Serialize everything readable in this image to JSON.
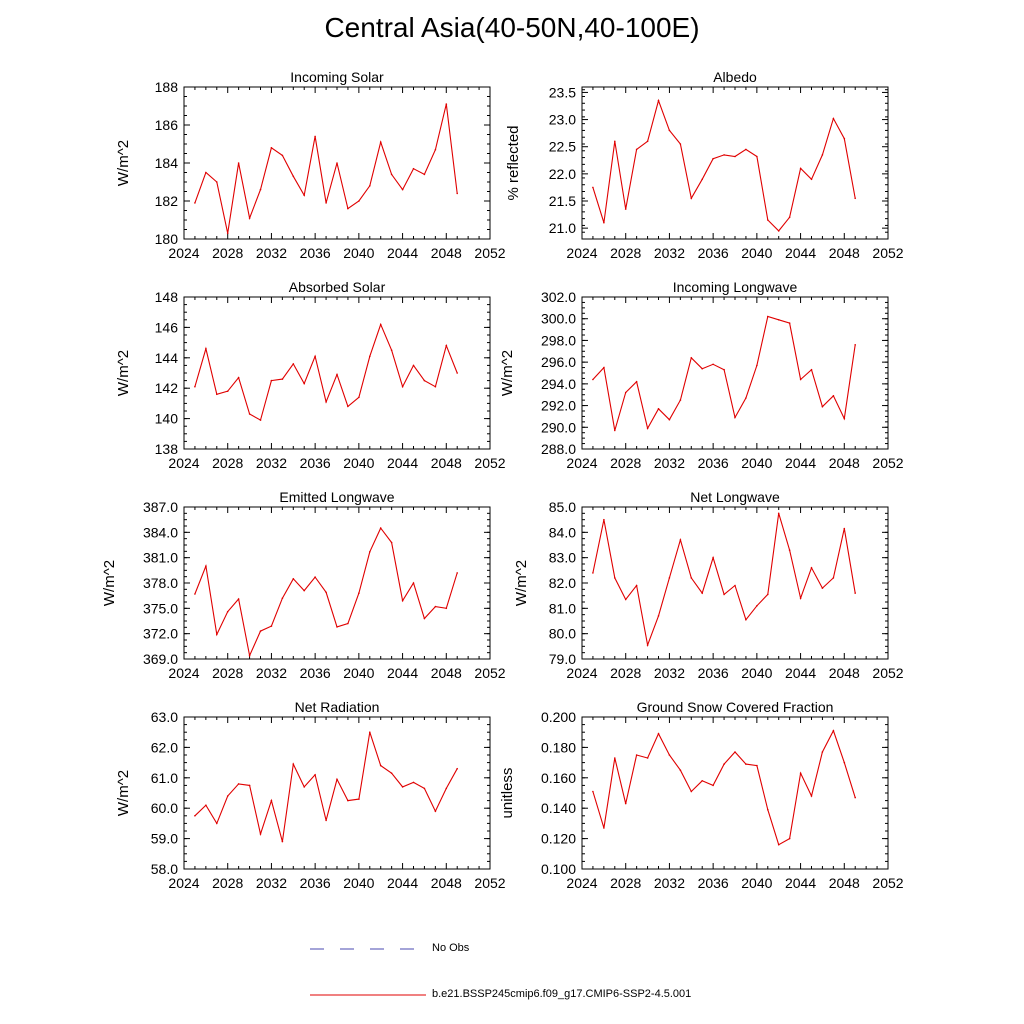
{
  "title": "Central Asia(40-50N,40-100E)",
  "legend": {
    "obs_label": "No Obs",
    "obs_color": "#4a4ab0",
    "model_label": "b.e21.BSSP245cmip6.f09_g17.CMIP6-SSP2-4.5.001",
    "model_color": "#e00000"
  },
  "chart_data": [
    {
      "type": "line",
      "title": "Incoming Solar",
      "ylabel": "W/m^2",
      "xlim": [
        2024,
        2052
      ],
      "ylim": [
        180,
        188
      ],
      "xticks": [
        "2024",
        "2028",
        "2032",
        "2036",
        "2040",
        "2044",
        "2048",
        "2052"
      ],
      "yticks": [
        "180",
        "182",
        "184",
        "186",
        "188"
      ],
      "x": [
        2025,
        2026,
        2027,
        2028,
        2029,
        2030,
        2031,
        2032,
        2033,
        2034,
        2035,
        2036,
        2037,
        2038,
        2039,
        2040,
        2041,
        2042,
        2043,
        2044,
        2045,
        2046,
        2047,
        2048,
        2049
      ],
      "values": [
        181.9,
        183.5,
        183.0,
        180.3,
        184.0,
        181.1,
        182.6,
        184.8,
        184.4,
        183.3,
        182.3,
        185.4,
        181.9,
        184.0,
        181.6,
        182.0,
        182.8,
        185.1,
        183.4,
        182.6,
        183.7,
        183.4,
        184.7,
        187.1,
        182.4
      ]
    },
    {
      "type": "line",
      "title": "Albedo",
      "ylabel": "% reflected",
      "xlim": [
        2024,
        2052
      ],
      "ylim": [
        20.8,
        23.6
      ],
      "xticks": [
        "2024",
        "2028",
        "2032",
        "2036",
        "2040",
        "2044",
        "2048",
        "2052"
      ],
      "yticks": [
        "21.0",
        "21.5",
        "22.0",
        "22.5",
        "23.0",
        "23.5"
      ],
      "x": [
        2025,
        2026,
        2027,
        2028,
        2029,
        2030,
        2031,
        2032,
        2033,
        2034,
        2035,
        2036,
        2037,
        2038,
        2039,
        2040,
        2041,
        2042,
        2043,
        2044,
        2045,
        2046,
        2047,
        2048,
        2049
      ],
      "values": [
        21.75,
        21.1,
        22.6,
        21.35,
        22.45,
        22.6,
        23.35,
        22.8,
        22.55,
        21.55,
        21.9,
        22.28,
        22.35,
        22.32,
        22.45,
        22.32,
        21.15,
        20.95,
        21.2,
        22.1,
        21.9,
        22.35,
        23.02,
        22.65,
        21.55
      ]
    },
    {
      "type": "line",
      "title": "Absorbed Solar",
      "ylabel": "W/m^2",
      "xlim": [
        2024,
        2052
      ],
      "ylim": [
        138,
        148
      ],
      "xticks": [
        "2024",
        "2028",
        "2032",
        "2036",
        "2040",
        "2044",
        "2048",
        "2052"
      ],
      "yticks": [
        "138",
        "140",
        "142",
        "144",
        "146",
        "148"
      ],
      "x": [
        2025,
        2026,
        2027,
        2028,
        2029,
        2030,
        2031,
        2032,
        2033,
        2034,
        2035,
        2036,
        2037,
        2038,
        2039,
        2040,
        2041,
        2042,
        2043,
        2044,
        2045,
        2046,
        2047,
        2048,
        2049
      ],
      "values": [
        142.1,
        144.6,
        141.6,
        141.8,
        142.7,
        140.3,
        139.9,
        142.5,
        142.6,
        143.6,
        142.3,
        144.1,
        141.1,
        142.9,
        140.8,
        141.4,
        144.1,
        146.2,
        144.5,
        142.1,
        143.5,
        142.5,
        142.1,
        144.8,
        143.0
      ]
    },
    {
      "type": "line",
      "title": "Incoming Longwave",
      "ylabel": "W/m^2",
      "xlim": [
        2024,
        2052
      ],
      "ylim": [
        288.0,
        302.0
      ],
      "xticks": [
        "2024",
        "2028",
        "2032",
        "2036",
        "2040",
        "2044",
        "2048",
        "2052"
      ],
      "yticks": [
        "288.0",
        "290.0",
        "292.0",
        "294.0",
        "296.0",
        "298.0",
        "300.0",
        "302.0"
      ],
      "x": [
        2025,
        2026,
        2027,
        2028,
        2029,
        2030,
        2031,
        2032,
        2033,
        2034,
        2035,
        2036,
        2037,
        2038,
        2039,
        2040,
        2041,
        2042,
        2043,
        2044,
        2045,
        2046,
        2047,
        2048,
        2049
      ],
      "values": [
        294.4,
        295.5,
        289.7,
        293.2,
        294.2,
        289.9,
        291.7,
        290.7,
        292.5,
        296.4,
        295.4,
        295.8,
        295.3,
        290.9,
        292.7,
        295.7,
        300.2,
        299.9,
        299.6,
        294.4,
        295.3,
        291.9,
        292.9,
        290.8,
        297.6
      ]
    },
    {
      "type": "line",
      "title": "Emitted Longwave",
      "ylabel": "W/m^2",
      "xlim": [
        2024,
        2052
      ],
      "ylim": [
        369.0,
        387.0
      ],
      "xticks": [
        "2024",
        "2028",
        "2032",
        "2036",
        "2040",
        "2044",
        "2048",
        "2052"
      ],
      "yticks": [
        "369.0",
        "372.0",
        "375.0",
        "378.0",
        "381.0",
        "384.0",
        "387.0"
      ],
      "x": [
        2025,
        2026,
        2027,
        2028,
        2029,
        2030,
        2031,
        2032,
        2033,
        2034,
        2035,
        2036,
        2037,
        2038,
        2039,
        2040,
        2041,
        2042,
        2043,
        2044,
        2045,
        2046,
        2047,
        2048,
        2049
      ],
      "values": [
        376.7,
        380.0,
        371.9,
        374.6,
        376.1,
        369.4,
        372.3,
        372.9,
        376.2,
        378.5,
        377.1,
        378.7,
        376.9,
        372.8,
        373.2,
        376.8,
        381.7,
        384.5,
        382.8,
        375.9,
        378.0,
        373.8,
        375.2,
        375.0,
        379.2
      ]
    },
    {
      "type": "line",
      "title": "Net Longwave",
      "ylabel": "W/m^2",
      "xlim": [
        2024,
        2052
      ],
      "ylim": [
        79.0,
        85.0
      ],
      "xticks": [
        "2024",
        "2028",
        "2032",
        "2036",
        "2040",
        "2044",
        "2048",
        "2052"
      ],
      "yticks": [
        "79.0",
        "80.0",
        "81.0",
        "82.0",
        "83.0",
        "84.0",
        "85.0"
      ],
      "x": [
        2025,
        2026,
        2027,
        2028,
        2029,
        2030,
        2031,
        2032,
        2033,
        2034,
        2035,
        2036,
        2037,
        2038,
        2039,
        2040,
        2041,
        2042,
        2043,
        2044,
        2045,
        2046,
        2047,
        2048,
        2049
      ],
      "values": [
        82.4,
        84.5,
        82.2,
        81.35,
        81.9,
        79.55,
        80.7,
        82.2,
        83.7,
        82.2,
        81.6,
        83.0,
        81.55,
        81.9,
        80.55,
        81.1,
        81.55,
        84.75,
        83.3,
        81.4,
        82.6,
        81.8,
        82.2,
        84.15,
        81.6
      ]
    },
    {
      "type": "line",
      "title": "Net Radiation",
      "ylabel": "W/m^2",
      "xlim": [
        2024,
        2052
      ],
      "ylim": [
        58.0,
        63.0
      ],
      "xticks": [
        "2024",
        "2028",
        "2032",
        "2036",
        "2040",
        "2044",
        "2048",
        "2052"
      ],
      "yticks": [
        "58.0",
        "59.0",
        "60.0",
        "61.0",
        "62.0",
        "63.0"
      ],
      "x": [
        2025,
        2026,
        2027,
        2028,
        2029,
        2030,
        2031,
        2032,
        2033,
        2034,
        2035,
        2036,
        2037,
        2038,
        2039,
        2040,
        2041,
        2042,
        2043,
        2044,
        2045,
        2046,
        2047,
        2048,
        2049
      ],
      "values": [
        59.75,
        60.1,
        59.5,
        60.4,
        60.8,
        60.75,
        59.15,
        60.25,
        58.9,
        61.45,
        60.7,
        61.1,
        59.6,
        60.95,
        60.25,
        60.3,
        62.5,
        61.4,
        61.15,
        60.7,
        60.85,
        60.65,
        59.9,
        60.65,
        61.3
      ]
    },
    {
      "type": "line",
      "title": "Ground Snow Covered Fraction",
      "ylabel": "unitless",
      "xlim": [
        2024,
        2052
      ],
      "ylim": [
        0.1,
        0.2
      ],
      "xticks": [
        "2024",
        "2028",
        "2032",
        "2036",
        "2040",
        "2044",
        "2048",
        "2052"
      ],
      "yticks": [
        "0.100",
        "0.120",
        "0.140",
        "0.160",
        "0.180",
        "0.200"
      ],
      "x": [
        2025,
        2026,
        2027,
        2028,
        2029,
        2030,
        2031,
        2032,
        2033,
        2034,
        2035,
        2036,
        2037,
        2038,
        2039,
        2040,
        2041,
        2042,
        2043,
        2044,
        2045,
        2046,
        2047,
        2048,
        2049
      ],
      "values": [
        0.151,
        0.127,
        0.173,
        0.143,
        0.175,
        0.173,
        0.189,
        0.175,
        0.165,
        0.151,
        0.158,
        0.155,
        0.169,
        0.177,
        0.169,
        0.168,
        0.139,
        0.116,
        0.12,
        0.163,
        0.148,
        0.177,
        0.191,
        0.17,
        0.147
      ]
    }
  ]
}
